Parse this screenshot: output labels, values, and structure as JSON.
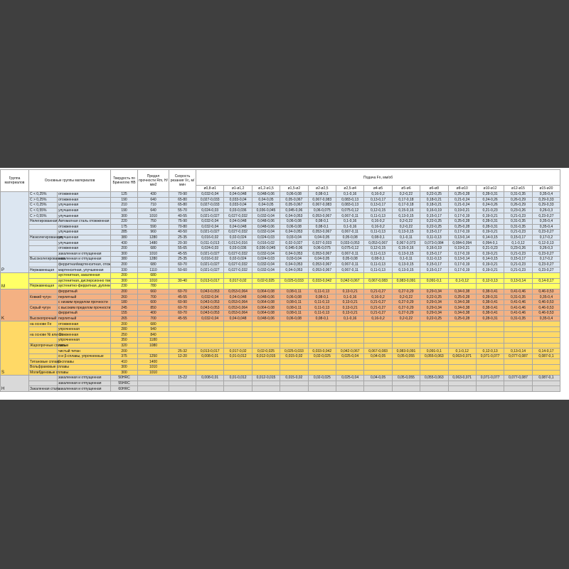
{
  "header": {
    "group": "Группа материалов",
    "materials": "Основные группы материалов",
    "hb": "Твердость по Бринеллю HB",
    "rm": "Предел прочности Rm, H/мм2",
    "vc": "Скорость резания Vc, м/мин",
    "feed": "Подача Fn, мм/об",
    "diameters": [
      "ø0,8-ø1",
      "ø1-ø1,2",
      "ø1,2-ø1,5",
      "ø1,5-ø2",
      "ø2-ø2,5",
      "ø2,5-ø4",
      "ø4-ø5",
      "ø5-ø6",
      "ø6-ø8",
      "ø8-ø10",
      "ø10-ø12",
      "ø12-ø15",
      "ø15-ø20"
    ]
  },
  "sections": [
    {
      "letter": "P",
      "color": "#dce6f1",
      "rows": [
        {
          "class": "C < 0,25%",
          "sub": "отожженная",
          "hb": "125",
          "rm": "430",
          "vc": "70-90",
          "feeds": [
            "0,032-0,04",
            "0,04-0,048",
            "0,048-0,06",
            "0,06-0,08",
            "0,08-0,1",
            "0,1-0,16",
            "0,16-0,2",
            "0,2-0,22",
            "0,22-0,25",
            "0,25-0,28",
            "0,28-0,31",
            "0,31-0,35",
            "0,35-0,4"
          ]
        },
        {
          "class": "C > 0,25%",
          "sub": "отожженная",
          "hb": "190",
          "rm": "640",
          "vc": "65-80",
          "feeds": [
            "0,027-0,033",
            "0,033-0,04",
            "0,04-0,05",
            "0,05-0,067",
            "0,067-0,083",
            "0,083-0,13",
            "0,13-0,17",
            "0,17-0,18",
            "0,18-0,21",
            "0,21-0,24",
            "0,24-0,26",
            "0,26-0,29",
            "0,29-0,33"
          ]
        },
        {
          "class": "C < 0,25%",
          "sub": "улучшенная",
          "hb": "210",
          "rm": "710",
          "vc": "65-80",
          "feeds": [
            "0,027-0,033",
            "0,033-0,04",
            "0,04-0,05",
            "0,05-0,067",
            "0,067-0,083",
            "0,083-0,13",
            "0,13-0,17",
            "0,17-0,18",
            "0,18-0,21",
            "0,21-0,24",
            "0,24-0,26",
            "0,26-0,29",
            "0,29-0,33"
          ]
        },
        {
          "class": "C < 0,55%",
          "sub": "улучшенная",
          "hb": "190",
          "rm": "640",
          "vc": "55-70",
          "feeds": [
            "0,024-0,03",
            "0,03-0,036",
            "0,036-0,045",
            "0,045-0,06",
            "0,06-0,075",
            "0,075-0,12",
            "0,12-0,15",
            "0,15-0,16",
            "0,16-0,19",
            "0,19-0,21",
            "0,21-0,23",
            "0,23-0,26",
            "0,26-0,3"
          ]
        },
        {
          "class": "C > 0,55%",
          "sub": "улучшенная",
          "hb": "300",
          "rm": "1010",
          "vc": "40-55",
          "feeds": [
            "0,021-0,027",
            "0,027-0,032",
            "0,032-0,04",
            "0,04-0,053",
            "0,053-0,067",
            "0,067-0,11",
            "0,11-0,13",
            "0,13-0,15",
            "0,15-0,17",
            "0,17-0,19",
            "0,19-0,21",
            "0,21-0,23",
            "0,23-0,27"
          ]
        },
        {
          "class": "Нелегированная",
          "sub": "Автоматная сталь отожженная",
          "hb": "220",
          "rm": "750",
          "vc": "75-90",
          "feeds": [
            "0,032-0,04",
            "0,04-0,048",
            "0,048-0,06",
            "0,06-0,08",
            "0,08-0,1",
            "0,1-0,16",
            "0,16-0,2",
            "0,2-0,22",
            "0,22-0,25",
            "0,25-0,28",
            "0,28-0,31",
            "0,31-0,35",
            "0,35-0,4"
          ]
        },
        {
          "sub": "отожженная",
          "hb": "175",
          "rm": "590",
          "vc": "70-80",
          "feeds": [
            "0,032-0,04",
            "0,04-0,048",
            "0,048-0,06",
            "0,06-0,08",
            "0,08-0,1",
            "0,1-0,16",
            "0,16-0,2",
            "0,2-0,22",
            "0,22-0,25",
            "0,25-0,28",
            "0,28-0,31",
            "0,31-0,35",
            "0,35-0,4"
          ]
        },
        {
          "sub": "улучшенная",
          "hb": "285",
          "rm": "960",
          "vc": "40-50",
          "feeds": [
            "0,021-0,027",
            "0,027-0,032",
            "0,032-0,04",
            "0,04-0,053",
            "0,053-0,067",
            "0,067-0,11",
            "0,11-0,13",
            "0,13-0,15",
            "0,15-0,17",
            "0,17-0,19",
            "0,19-0,21",
            "0,21-0,23",
            "0,23-0,27"
          ]
        },
        {
          "class": "Низколегированная",
          "sub": "улучшенная",
          "hb": "380",
          "rm": "1280",
          "vc": "25-35",
          "feeds": [
            "0,016-0,02",
            "0,02-0,024",
            "0,024-0,03",
            "0,03-0,04",
            "0,04-0,05",
            "0,05-0,08",
            "0,08-0,1",
            "0,1-0,11",
            "0,11-0,13",
            "0,13-0,14",
            "0,14-0,15",
            "0,15-0,17",
            "0,17-0,2"
          ]
        },
        {
          "sub": "улучшенная",
          "hb": "430",
          "rm": "1480",
          "vc": "20-30",
          "feeds": [
            "0,011-0,013",
            "0,013-0,016",
            "0,016-0,02",
            "0,02-0,027",
            "0,027-0,033",
            "0,033-0,053",
            "0,053-0,067",
            "0,067-0,073",
            "0,073-0,084",
            "0,084-0,094",
            "0,094-0,1",
            "0,1-0,12",
            "0,12-0,13"
          ]
        },
        {
          "sub": "отожженная",
          "hb": "200",
          "rm": "680",
          "vc": "55-65",
          "feeds": [
            "0,024-0,03",
            "0,03-0,036",
            "0,036-0,045",
            "0,045-0,06",
            "0,06-0,075",
            "0,075-0,12",
            "0,12-0,15",
            "0,15-0,16",
            "0,16-0,19",
            "0,19-0,21",
            "0,21-0,23",
            "0,23-0,26",
            "0,26-0,3"
          ]
        },
        {
          "sub": "закаленная и отпущенная",
          "hb": "300",
          "rm": "1010",
          "vc": "45-55",
          "feeds": [
            "0,021-0,027",
            "0,027-0,032",
            "0,032-0,04",
            "0,04-0,053",
            "0,053-0,067",
            "0,067-0,11",
            "0,11-0,13",
            "0,13-0,15",
            "0,15-0,17",
            "0,17-0,19",
            "0,19-0,21",
            "0,21-0,23",
            "0,23-0,27"
          ]
        },
        {
          "class": "Высоколегированная",
          "sub": "закаленная и отпущенная",
          "hb": "380",
          "rm": "1280",
          "vc": "25-35",
          "feeds": [
            "0,016-0,02",
            "0,02-0,024",
            "0,024-0,03",
            "0,03-0,04",
            "0,04-0,05",
            "0,05-0,08",
            "0,08-0,1",
            "0,1-0,11",
            "0,11-0,13",
            "0,13-0,14",
            "0,14-0,15",
            "0,15-0,17",
            "0,17-0,2"
          ]
        },
        {
          "sub": "ферритная/мартенситная, отожженная",
          "hb": "200",
          "rm": "680",
          "vc": "60-70",
          "feeds": [
            "0,021-0,027",
            "0,027-0,032",
            "0,032-0,04",
            "0,04-0,053",
            "0,053-0,067",
            "0,067-0,11",
            "0,11-0,13",
            "0,13-0,15",
            "0,15-0,17",
            "0,17-0,19",
            "0,19-0,21",
            "0,21-0,23",
            "0,23-0,27"
          ]
        },
        {
          "class": "Нержавеющая",
          "sub": "мартенситная, улучшенная",
          "hb": "330",
          "rm": "1110",
          "vc": "50-60",
          "feeds": [
            "0,021-0,027",
            "0,027-0,032",
            "0,032-0,04",
            "0,04-0,053",
            "0,053-0,067",
            "0,067-0,11",
            "0,11-0,13",
            "0,13-0,15",
            "0,15-0,17",
            "0,17-0,19",
            "0,19-0,21",
            "0,21-0,23",
            "0,23-0,27"
          ]
        }
      ]
    },
    {
      "letter": "M",
      "color": "#ffff66",
      "rows": [
        {
          "sub": "аустенитная, закаленная",
          "hb": "200",
          "rm": "680"
        },
        {
          "sub": "аустенитная, дисперсионно твердеющая",
          "hb": "300",
          "rm": "1010",
          "vc": "30-40",
          "feeds": [
            "0,013-0,017",
            "0,017-0,02",
            "0,02-0,025",
            "0,025-0,033",
            "0,033-0,042",
            "0,042-0,067",
            "0,067-0,083",
            "0,083-0,091",
            "0,091-0,1",
            "0,1-0,12",
            "0,12-0,13",
            "0,13-0,14",
            "0,14-0,17"
          ]
        },
        {
          "class": "Нержавеющая",
          "sub": "аустенитно-ферритная, дуплекс",
          "hb": "230",
          "rm": "780"
        }
      ]
    },
    {
      "letter": "K",
      "color": "#f4b183",
      "rows": [
        {
          "sub": "ферритный",
          "hb": "200",
          "rm": "660",
          "vc": "60-70",
          "feeds": [
            "0,043-0,053",
            "0,053-0,064",
            "0,064-0,08",
            "0,08-0,11",
            "0,11-0,13",
            "0,13-0,21",
            "0,21-0,27",
            "0,27-0,29",
            "0,29-0,34",
            "0,34-0,38",
            "0,38-0,41",
            "0,41-0,46",
            "0,46-0,53"
          ]
        },
        {
          "class": "Ковкий чугун",
          "sub": "перлитный",
          "hb": "260",
          "rm": "700",
          "vc": "45-55",
          "feeds": [
            "0,032-0,04",
            "0,04-0,048",
            "0,048-0,06",
            "0,06-0,08",
            "0,08-0,1",
            "0,1-0,16",
            "0,16-0,2",
            "0,2-0,22",
            "0,22-0,25",
            "0,25-0,28",
            "0,28-0,31",
            "0,31-0,35",
            "0,35-0,4"
          ]
        },
        {
          "sub": "с низким пределом прочности",
          "hb": "180",
          "rm": "600",
          "vc": "60-90",
          "feeds": [
            "0,043-0,053",
            "0,053-0,064",
            "0,064-0,08",
            "0,08-0,11",
            "0,11-0,13",
            "0,13-0,21",
            "0,21-0,27",
            "0,27-0,29",
            "0,29-0,34",
            "0,34-0,38",
            "0,38-0,41",
            "0,41-0,46",
            "0,46-0,53"
          ]
        },
        {
          "class": "Серый чугун",
          "sub": "с высоким пределом прочности",
          "hb": "245",
          "rm": "850",
          "vc": "60-70",
          "feeds": [
            "0,043-0,053",
            "0,053-0,064",
            "0,064-0,08",
            "0,08-0,11",
            "0,11-0,13",
            "0,13-0,21",
            "0,21-0,27",
            "0,27-0,29",
            "0,29-0,34",
            "0,34-0,38",
            "0,38-0,41",
            "0,41-0,46",
            "0,46-0,53"
          ]
        },
        {
          "sub": "ферритный",
          "hb": "155",
          "rm": "400",
          "vc": "60-70",
          "feeds": [
            "0,043-0,053",
            "0,053-0,064",
            "0,064-0,08",
            "0,08-0,11",
            "0,11-0,13",
            "0,13-0,21",
            "0,21-0,27",
            "0,27-0,29",
            "0,29-0,34",
            "0,34-0,38",
            "0,38-0,41",
            "0,41-0,46",
            "0,46-0,53"
          ]
        },
        {
          "class": "Высокопрочный",
          "sub": "перлитный",
          "hb": "265",
          "rm": "700",
          "vc": "45-55",
          "feeds": [
            "0,032-0,04",
            "0,04-0,048",
            "0,048-0,06",
            "0,06-0,08",
            "0,08-0,1",
            "0,1-0,16",
            "0,16-0,2",
            "0,2-0,22",
            "0,22-0,25",
            "0,25-0,28",
            "0,28-0,31",
            "0,31-0,35",
            "0,35-0,4"
          ]
        }
      ]
    },
    {
      "letter": "S",
      "color": "#ffd966",
      "rows": [
        {
          "class": "на основе Fe",
          "sub": "отожженная",
          "hb": "200",
          "rm": "680"
        },
        {
          "sub": "упрочненная",
          "hb": "280",
          "rm": "940"
        },
        {
          "class": "на основе Ni или Co",
          "sub": "отожженная",
          "hb": "250",
          "rm": "840"
        },
        {
          "sub": "упрочненная",
          "hb": "350",
          "rm": "1180"
        },
        {
          "class": "Жаропрочные сплавы",
          "sub": "литые",
          "hb": "320",
          "rm": "1080"
        },
        {
          "sub": "чистый титан",
          "hb": "200",
          "vc": "25-32",
          "feeds": [
            "0,013-0,017",
            "0,017-0,02",
            "0,02-0,025",
            "0,025-0,033",
            "0,033-0,042",
            "0,042-0,067",
            "0,067-0,083",
            "0,083-0,091",
            "0,091-0,1",
            "0,1-0,12",
            "0,12-0,13",
            "0,13-0,14",
            "0,14-0,17"
          ]
        },
        {
          "sub": "α и β-сплавы, упрочненные",
          "hb": "375",
          "rm": "1250",
          "vc": "12-20",
          "feeds": [
            "0,008-0,01",
            "0,01-0,012",
            "0,012-0,015",
            "0,015-0,02",
            "0,02-0,025",
            "0,025-0,04",
            "0,04-0,05",
            "0,05-0,055",
            "0,055-0,063",
            "0,063-0,071",
            "0,071-0,077",
            "0,077-0,087",
            "0,087-0,1"
          ]
        },
        {
          "class": "Титановые сплавы",
          "sub": "β-сплавы",
          "hb": "410",
          "rm": "1400"
        },
        {
          "class": "Вольфрамовые сплавы",
          "hb": "300",
          "rm": "1010"
        },
        {
          "class": "Молибденовые сплавы",
          "hb": "300",
          "rm": "1010"
        }
      ]
    },
    {
      "letter": "H",
      "color": "#d9d9d9",
      "rows": [
        {
          "sub": "закаленная и отпущенная",
          "hb": "50HRC",
          "vc": "15-22",
          "feeds": [
            "0,008-0,01",
            "0,01-0,012",
            "0,012-0,015",
            "0,015-0,02",
            "0,02-0,025",
            "0,025-0,04",
            "0,04-0,05",
            "0,05-0,055",
            "0,055-0,063",
            "0,063-0,071",
            "0,071-0,077",
            "0,077-0,087",
            "0,087-0,1"
          ]
        },
        {
          "sub": "закаленная и отпущенная",
          "hb": "55HRC"
        },
        {
          "class": "Закаленная сталь",
          "sub": "закаленная и отпущенная",
          "hb": "60HRC"
        }
      ]
    }
  ]
}
